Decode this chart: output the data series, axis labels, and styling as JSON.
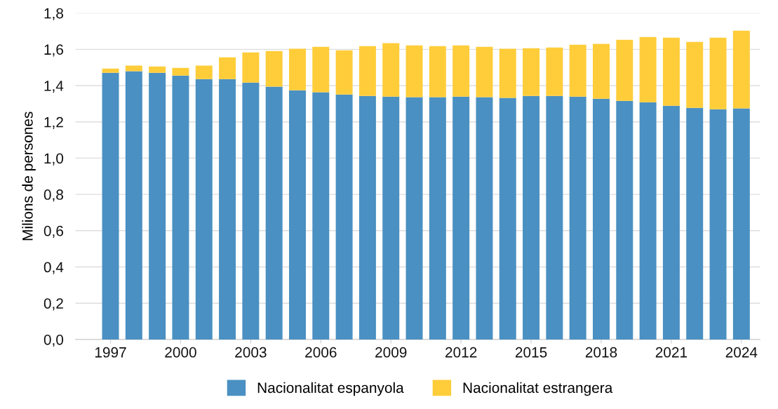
{
  "chart_data": {
    "type": "bar",
    "stacked": true,
    "ylabel": "Milions de persones",
    "x": [
      1997,
      1998,
      1999,
      2000,
      2001,
      2002,
      2003,
      2004,
      2005,
      2006,
      2007,
      2008,
      2009,
      2010,
      2011,
      2012,
      2013,
      2014,
      2015,
      2016,
      2017,
      2018,
      2019,
      2020,
      2021,
      2022,
      2023,
      2024
    ],
    "series": [
      {
        "name": "Nacionalitat espanyola",
        "color": "#4a90c2",
        "values": [
          1.471,
          1.479,
          1.471,
          1.455,
          1.436,
          1.436,
          1.417,
          1.394,
          1.374,
          1.363,
          1.351,
          1.343,
          1.339,
          1.336,
          1.336,
          1.339,
          1.336,
          1.332,
          1.343,
          1.343,
          1.339,
          1.328,
          1.316,
          1.308,
          1.289,
          1.277,
          1.27,
          1.274
        ]
      },
      {
        "name": "Nacionalitat estrangera",
        "color": "#ffcd3a",
        "values": [
          0.023,
          0.031,
          0.035,
          0.043,
          0.074,
          0.12,
          0.166,
          0.197,
          0.229,
          0.251,
          0.244,
          0.275,
          0.295,
          0.286,
          0.282,
          0.283,
          0.278,
          0.271,
          0.263,
          0.267,
          0.287,
          0.302,
          0.337,
          0.36,
          0.375,
          0.364,
          0.394,
          0.429
        ]
      }
    ],
    "xlim": [
      1995.5,
      2024.8
    ],
    "xticks": [
      1997,
      2000,
      2003,
      2006,
      2009,
      2012,
      2015,
      2018,
      2021,
      2024
    ],
    "ylim": [
      0,
      1.8
    ],
    "yticks": [
      {
        "value": 0,
        "label": "0,0"
      },
      {
        "value": 0.2,
        "label": "0,2"
      },
      {
        "value": 0.4,
        "label": "0,4"
      },
      {
        "value": 0.6,
        "label": "0,6"
      },
      {
        "value": 0.8,
        "label": "0,8"
      },
      {
        "value": 1.0,
        "label": "1,0"
      },
      {
        "value": 1.2,
        "label": "1,2"
      },
      {
        "value": 1.4,
        "label": "1,4"
      },
      {
        "value": 1.6,
        "label": "1,6"
      },
      {
        "value": 1.8,
        "label": "1,8"
      }
    ],
    "grid": "y",
    "legend": "bottom"
  }
}
